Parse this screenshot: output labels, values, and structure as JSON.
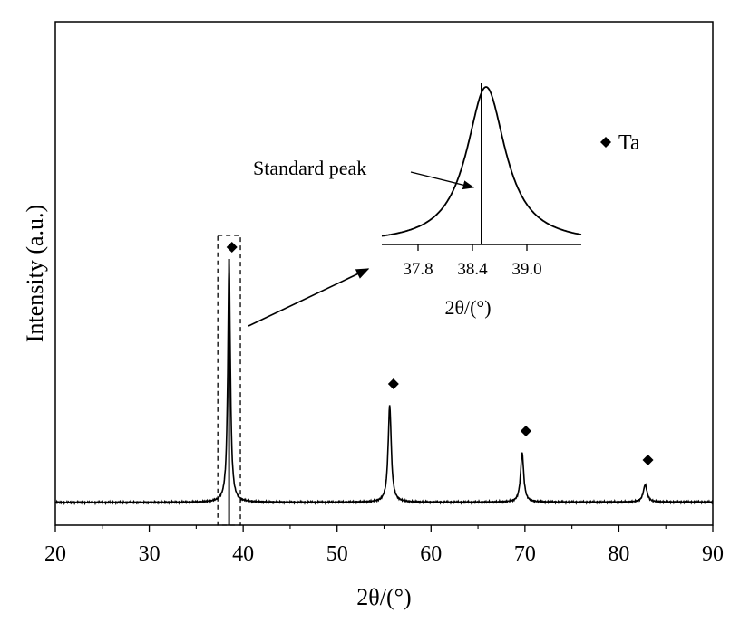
{
  "chart_data": {
    "type": "line",
    "xlabel": "2θ/(°)",
    "ylabel": "Intensity (a.u.)",
    "xlim": [
      20,
      90
    ],
    "x_ticks": [
      20,
      30,
      40,
      50,
      60,
      70,
      80,
      90
    ],
    "y_ticks": [],
    "grid": false,
    "legend": {
      "position": "top-right",
      "entries": [
        {
          "marker": "diamond",
          "label": "Ta"
        }
      ]
    },
    "series": [
      {
        "baseline": 0.02,
        "peaks": [
          {
            "x": 38.5,
            "height": 1.0
          },
          {
            "x": 55.6,
            "height": 0.41
          },
          {
            "x": 69.7,
            "height": 0.22
          },
          {
            "x": 82.8,
            "height": 0.09
          }
        ]
      }
    ],
    "markers": [
      {
        "x": 38.8,
        "label": "Ta"
      },
      {
        "x": 56.0,
        "label": "Ta"
      },
      {
        "x": 70.1,
        "label": "Ta"
      },
      {
        "x": 83.1,
        "label": "Ta"
      }
    ],
    "standard_line_x": 38.5,
    "highlight_box": {
      "x_from": 37.3,
      "x_to": 39.7
    },
    "inset": {
      "xlabel": "2θ/(°)",
      "x_ticks": [
        "37.8",
        "38.4",
        "39.0"
      ],
      "xlim": [
        37.4,
        39.6
      ],
      "peak_center": 38.55,
      "standard_line_x": 38.5,
      "annotation": "Standard peak"
    }
  }
}
